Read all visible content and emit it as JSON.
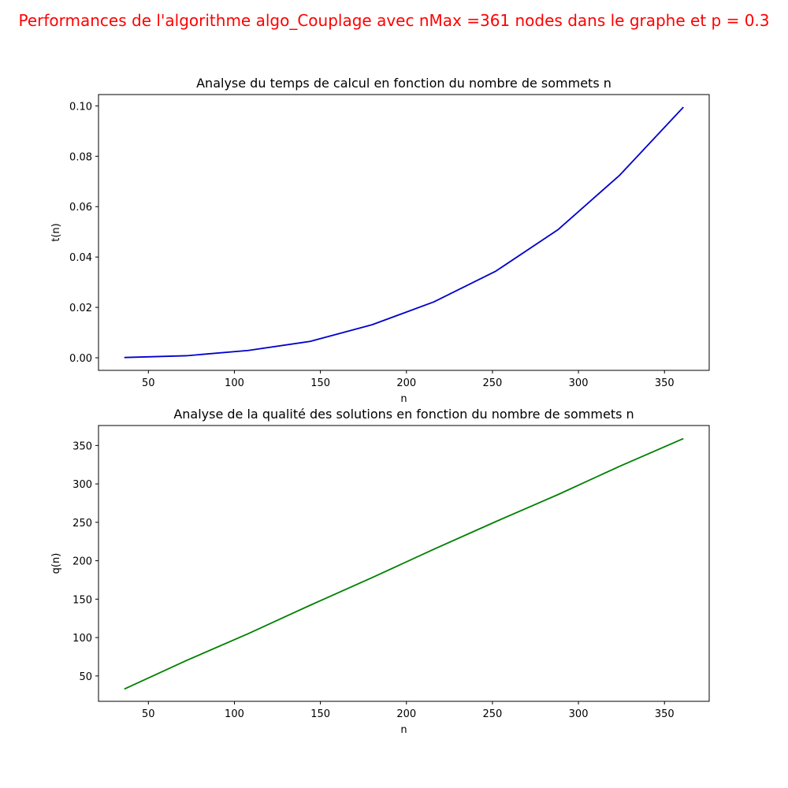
{
  "suptitle": "Performances de l'algorithme algo_Couplage avec nMax =361 nodes dans le graphe et p = 0.3",
  "colors": {
    "suptitle": "#ff0000"
  },
  "chart_data": [
    {
      "type": "line",
      "title": "Analyse du temps de calcul en fonction du nombre de sommets n",
      "xlabel": "n",
      "ylabel": "t(n)",
      "xlim": [
        21,
        376
      ],
      "ylim": [
        -0.005,
        0.1045
      ],
      "xticks": [
        50,
        100,
        150,
        200,
        250,
        300,
        350
      ],
      "xtick_labels": [
        "50",
        "100",
        "150",
        "200",
        "250",
        "300",
        "350"
      ],
      "yticks": [
        0,
        0.02,
        0.04,
        0.06,
        0.08,
        0.1
      ],
      "ytick_labels": [
        "0.00",
        "0.02",
        "0.04",
        "0.06",
        "0.08",
        "0.10"
      ],
      "grid": false,
      "series": [
        {
          "color": "#0000cc",
          "x": [
            36,
            72,
            108,
            144,
            180,
            216,
            252,
            288,
            324,
            361
          ],
          "y": [
            0.0001,
            0.0008,
            0.0029,
            0.0065,
            0.0131,
            0.0222,
            0.0344,
            0.0508,
            0.0725,
            0.0995
          ]
        }
      ]
    },
    {
      "type": "line",
      "title": "Analyse de la qualité des solutions en fonction du nombre de sommets n",
      "xlabel": "n",
      "ylabel": "q(n)",
      "xlim": [
        21,
        376
      ],
      "ylim": [
        17,
        376
      ],
      "xticks": [
        50,
        100,
        150,
        200,
        250,
        300,
        350
      ],
      "xtick_labels": [
        "50",
        "100",
        "150",
        "200",
        "250",
        "300",
        "350"
      ],
      "yticks": [
        50,
        100,
        150,
        200,
        250,
        300,
        350
      ],
      "ytick_labels": [
        "50",
        "100",
        "150",
        "200",
        "250",
        "300",
        "350"
      ],
      "grid": false,
      "series": [
        {
          "color": "#008000",
          "x": [
            36,
            72,
            108,
            144,
            180,
            216,
            252,
            288,
            324,
            361
          ],
          "y": [
            33,
            70,
            105,
            142,
            178,
            215,
            251,
            286,
            323,
            359
          ]
        }
      ]
    }
  ]
}
